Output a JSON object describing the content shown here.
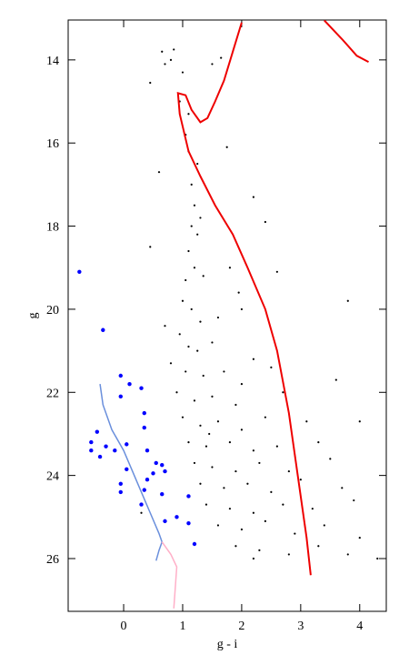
{
  "chart_data": {
    "type": "scatter",
    "x_label": "g - i",
    "y_label": "g",
    "xlim": [
      -0.94,
      4.45
    ],
    "ylim": [
      13.04,
      27.27
    ],
    "y_inverted": true,
    "xticks": [
      0,
      1,
      2,
      3,
      4
    ],
    "yticks": [
      14,
      16,
      18,
      20,
      22,
      24,
      26
    ],
    "series": [
      {
        "type": "scatter",
        "color": "#000000",
        "x": [
          0.85,
          0.65,
          0.8,
          0.7,
          0.45,
          1.0,
          1.5,
          1.65,
          0.95,
          1.1,
          1.05,
          1.1,
          1.25,
          0.6,
          1.15,
          1.75,
          1.2,
          1.3,
          2.2,
          1.25,
          1.1,
          0.45,
          1.2,
          1.05,
          1.35,
          1.8,
          1.0,
          1.15,
          1.3,
          1.6,
          2.0,
          0.95,
          1.1,
          1.25,
          1.5,
          2.2,
          0.8,
          1.05,
          1.35,
          1.7,
          2.5,
          0.9,
          1.2,
          1.5,
          1.9,
          2.7,
          1.0,
          1.3,
          1.6,
          2.0,
          2.4,
          3.1,
          1.1,
          1.4,
          1.8,
          2.2,
          2.6,
          3.3,
          1.2,
          1.5,
          1.9,
          2.3,
          2.8,
          3.5,
          1.3,
          1.7,
          2.1,
          2.5,
          3.0,
          3.7,
          1.4,
          1.8,
          2.2,
          2.7,
          3.2,
          3.9,
          1.6,
          2.0,
          2.4,
          2.9,
          3.4,
          4.0,
          1.9,
          2.3,
          2.8,
          3.3,
          3.8,
          2.2,
          4.3,
          3.8,
          3.6,
          4.0,
          0.3,
          2.6,
          2.4,
          0.7,
          1.95,
          1.45,
          2.0,
          1.15
        ],
        "y": [
          13.75,
          13.8,
          14.0,
          14.1,
          14.55,
          14.3,
          14.1,
          13.95,
          15.0,
          15.3,
          15.8,
          16.2,
          16.5,
          16.7,
          17.0,
          16.1,
          17.5,
          17.8,
          17.3,
          18.2,
          18.6,
          18.5,
          19.0,
          19.3,
          19.2,
          19.0,
          19.8,
          20.0,
          20.3,
          20.2,
          20.0,
          20.6,
          20.9,
          21.0,
          20.8,
          21.2,
          21.3,
          21.5,
          21.6,
          21.5,
          21.4,
          22.0,
          22.2,
          22.1,
          22.3,
          22.0,
          22.6,
          22.8,
          22.7,
          22.9,
          22.6,
          22.7,
          23.2,
          23.3,
          23.2,
          23.4,
          23.3,
          23.2,
          23.7,
          23.8,
          23.9,
          23.7,
          23.9,
          23.6,
          24.2,
          24.3,
          24.2,
          24.4,
          24.1,
          24.3,
          24.7,
          24.8,
          24.9,
          24.7,
          24.8,
          24.6,
          25.2,
          25.3,
          25.1,
          25.4,
          25.2,
          25.5,
          25.7,
          25.8,
          25.9,
          25.7,
          25.9,
          26.0,
          26.0,
          19.8,
          21.7,
          22.7,
          24.9,
          19.1,
          17.9,
          20.4,
          19.6,
          23.0,
          21.8,
          18.0
        ]
      },
      {
        "type": "scatter",
        "color": "#0000ff",
        "x": [
          -0.75,
          -0.35,
          -0.05,
          0.1,
          0.3,
          -0.05,
          0.35,
          0.35,
          -0.45,
          -0.55,
          -0.3,
          -0.4,
          -0.55,
          -0.15,
          0.05,
          0.4,
          0.55,
          0.65,
          0.7,
          0.05,
          0.5,
          -0.05,
          0.4,
          0.35,
          0.65,
          -0.05,
          0.3,
          1.1,
          0.9,
          0.7,
          1.1,
          1.2
        ],
        "y": [
          19.1,
          20.5,
          21.6,
          21.8,
          21.9,
          22.1,
          22.5,
          22.85,
          22.95,
          23.2,
          23.3,
          23.55,
          23.4,
          23.4,
          23.25,
          23.4,
          23.7,
          23.75,
          23.9,
          23.85,
          23.95,
          24.2,
          24.1,
          24.35,
          24.45,
          24.4,
          24.7,
          24.5,
          25.0,
          25.1,
          25.15,
          25.65
        ]
      },
      {
        "type": "line",
        "color": "#ee0000",
        "x": [
          3.17,
          3.1,
          2.95,
          2.8,
          2.6,
          2.4,
          2.1,
          1.85,
          1.55,
          1.3,
          1.1,
          0.95,
          0.92,
          1.05,
          1.15,
          1.3,
          1.42,
          1.55,
          1.7,
          1.85,
          2.0,
          null,
          3.4,
          3.7,
          3.95,
          4.15
        ],
        "y": [
          26.4,
          25.5,
          24.0,
          22.5,
          21.0,
          20.0,
          19.0,
          18.2,
          17.5,
          16.8,
          16.2,
          15.3,
          14.8,
          14.85,
          15.2,
          15.5,
          15.4,
          15.0,
          14.5,
          13.8,
          13.1,
          null,
          13.05,
          13.5,
          13.9,
          14.05
        ]
      },
      {
        "type": "line",
        "color": "#6a8fdc",
        "x": [
          -0.4,
          -0.35,
          -0.2,
          0.0,
          0.15,
          0.3,
          0.45,
          0.6,
          0.65,
          0.6,
          0.55
        ],
        "y": [
          21.8,
          22.3,
          22.9,
          23.4,
          23.9,
          24.4,
          24.9,
          25.4,
          25.6,
          25.8,
          26.05
        ]
      },
      {
        "type": "line",
        "color": "#ffb0c8",
        "x": [
          0.65,
          0.8,
          0.9,
          0.88,
          0.85
        ],
        "y": [
          25.6,
          25.9,
          26.2,
          26.6,
          27.2
        ]
      }
    ]
  }
}
